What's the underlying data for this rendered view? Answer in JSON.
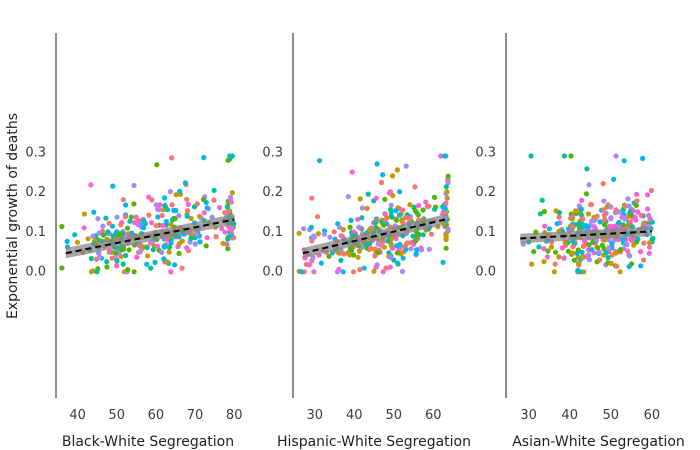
{
  "chart_data": {
    "type": "scatter",
    "ylabel": "Exponential growth of deaths",
    "ylim": [
      -0.32,
      0.6
    ],
    "yticks": [
      0.0,
      0.1,
      0.2,
      0.3
    ],
    "ytick_labels": [
      "0.0",
      "0.1",
      "0.2",
      "0.3"
    ],
    "point_colors": [
      "#f8766d",
      "#c49a00",
      "#53b400",
      "#00c094",
      "#00b6eb",
      "#a58aff",
      "#fb61d7"
    ],
    "trend_color": "#000000",
    "band_color": "#888888",
    "panels": [
      {
        "xlabel": "Black-White Segregation",
        "xlim": [
          35,
          82
        ],
        "xticks": [
          40,
          50,
          60,
          70,
          80
        ],
        "xtick_labels": [
          "40",
          "50",
          "60",
          "70",
          "80"
        ],
        "trend": {
          "x0": 37,
          "y0": 0.045,
          "x1": 80,
          "y1": 0.13
        },
        "band_halfwidth": 0.013,
        "seed": 11,
        "n_points": 330,
        "clusters": [
          {
            "x": 42,
            "spread": 3,
            "weight": 1
          },
          {
            "x": 48,
            "spread": 3,
            "weight": 2
          },
          {
            "x": 54,
            "spread": 3,
            "weight": 3
          },
          {
            "x": 60,
            "spread": 3,
            "weight": 3
          },
          {
            "x": 66,
            "spread": 3,
            "weight": 3
          },
          {
            "x": 72,
            "spread": 3,
            "weight": 2
          },
          {
            "x": 79,
            "spread": 0.6,
            "weight": 2
          }
        ]
      },
      {
        "xlabel": "Hispanic-White Segregation",
        "xlim": [
          25,
          66
        ],
        "xticks": [
          30,
          40,
          50,
          60
        ],
        "xtick_labels": [
          "30",
          "40",
          "50",
          "60"
        ],
        "trend": {
          "x0": 27,
          "y0": 0.045,
          "x1": 63,
          "y1": 0.13
        },
        "band_halfwidth": 0.013,
        "seed": 23,
        "n_points": 330,
        "clusters": [
          {
            "x": 30,
            "spread": 2,
            "weight": 1
          },
          {
            "x": 37,
            "spread": 2.5,
            "weight": 2
          },
          {
            "x": 43,
            "spread": 2.5,
            "weight": 3
          },
          {
            "x": 48,
            "spread": 2.5,
            "weight": 3
          },
          {
            "x": 52,
            "spread": 2.5,
            "weight": 3
          },
          {
            "x": 57,
            "spread": 2.5,
            "weight": 2
          },
          {
            "x": 63,
            "spread": 0.5,
            "weight": 2
          }
        ]
      },
      {
        "xlabel": "Asian-White Segregation",
        "xlim": [
          25,
          70
        ],
        "xticks": [
          30,
          40,
          50,
          60
        ],
        "xtick_labels": [
          "30",
          "40",
          "50",
          "60"
        ],
        "trend": {
          "x0": 28,
          "y0": 0.082,
          "x1": 60,
          "y1": 0.1
        },
        "band_halfwidth": 0.012,
        "seed": 37,
        "n_points": 330,
        "clusters": [
          {
            "x": 34,
            "spread": 2,
            "weight": 1
          },
          {
            "x": 39,
            "spread": 2,
            "weight": 2
          },
          {
            "x": 43,
            "spread": 2,
            "weight": 3
          },
          {
            "x": 47,
            "spread": 2,
            "weight": 3
          },
          {
            "x": 52,
            "spread": 2,
            "weight": 3
          },
          {
            "x": 56,
            "spread": 2,
            "weight": 2
          },
          {
            "x": 59,
            "spread": 1,
            "weight": 1
          }
        ]
      }
    ]
  }
}
